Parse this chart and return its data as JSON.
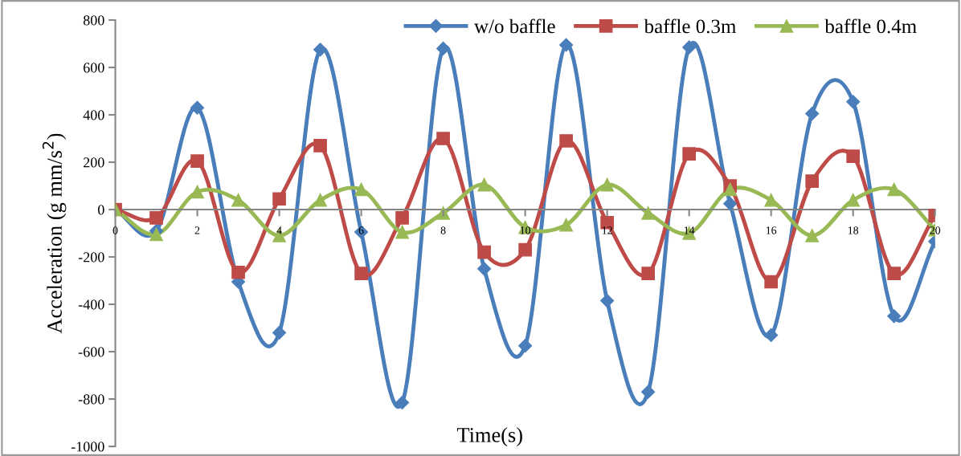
{
  "chart_data": {
    "type": "line",
    "xlabel": "Time(s)",
    "ylabel": "Acceleration (g mm/s$^{2}$)",
    "x": [
      0,
      1,
      2,
      3,
      4,
      5,
      6,
      7,
      8,
      9,
      10,
      11,
      12,
      13,
      14,
      15,
      16,
      17,
      18,
      19,
      20
    ],
    "xlim": [
      0,
      20
    ],
    "xticks": [
      0,
      2,
      4,
      6,
      8,
      10,
      12,
      14,
      16,
      18,
      20
    ],
    "ylim": [
      -1000,
      800
    ],
    "yticks": [
      -1000,
      -800,
      -600,
      -400,
      -200,
      0,
      200,
      400,
      600,
      800
    ],
    "grid": false,
    "legend": "top right",
    "line_style": "solid",
    "series": [
      {
        "name": "w/o baffle",
        "color": "#4a7ebb",
        "marker": "diamond",
        "values": [
          0,
          -90,
          430,
          -305,
          -520,
          675,
          -95,
          -815,
          680,
          -250,
          -575,
          695,
          -385,
          -770,
          685,
          25,
          -530,
          405,
          455,
          -450,
          -135
        ]
      },
      {
        "name": "baffle 0.3m",
        "color": "#be4b48",
        "marker": "square",
        "values": [
          0,
          -35,
          205,
          -265,
          45,
          270,
          -270,
          -35,
          300,
          -180,
          -170,
          290,
          -55,
          -270,
          235,
          100,
          -305,
          120,
          225,
          -270,
          -25
        ]
      },
      {
        "name": "baffle 0.4m",
        "color": "#98b954",
        "marker": "triangle",
        "values": [
          0,
          -105,
          75,
          40,
          -110,
          40,
          85,
          -95,
          -15,
          105,
          -75,
          -65,
          105,
          -15,
          -100,
          85,
          40,
          -110,
          40,
          85,
          -85
        ]
      }
    ]
  }
}
